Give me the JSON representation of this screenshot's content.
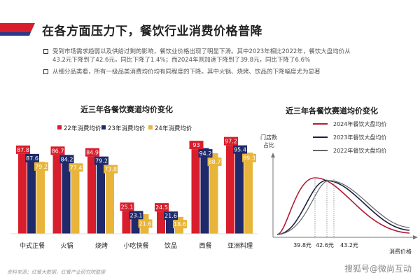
{
  "header": {
    "title": "在各方面压力下，餐饮行业消费价格普降"
  },
  "bullets": [
    "受到市场需求趋弱以及供给过剩的影响，餐饮业价格出现了明显下滑。其中2023年相比2022年，餐饮大盘均价从43.2元下降到了42.6元，同比下降了1.4%；而2024年则加速下降到了39.8元，同比下降了6.6%",
    "从细分品类看，所有一级品类消费均价均有同程度的下降。其中火锅、烧烤、饮品的下降幅度尤为显著"
  ],
  "source": "资料来源：红餐大数据，红餐产业研究院整理",
  "watermark": "搜狐号@微尚互动",
  "colors": {
    "red": "#d81e2c",
    "navy": "#1f2a6b",
    "gold": "#e8b53a",
    "brand_red": "#d81e2c",
    "brand_navy": "#2a3a8a"
  },
  "chart_data": [
    {
      "type": "bar",
      "title": "近三年各餐饮赛道均价变化",
      "categories": [
        "中式正餐",
        "火锅",
        "烧烤",
        "小吃快餐",
        "饮品",
        "西餐",
        "亚洲料理"
      ],
      "series": [
        {
          "name": "22年消费均价",
          "color": "#d81e2c",
          "values": [
            87.8,
            86.7,
            84.9,
            25.1,
            24.5,
            93,
            97.2
          ]
        },
        {
          "name": "23年消费均价",
          "color": "#1f2a6b",
          "values": [
            87.6,
            84.2,
            79.2,
            23.1,
            21.6,
            94.2,
            95.4
          ]
        },
        {
          "name": "24年消费均价",
          "color": "#e8b53a",
          "values": [
            79.2,
            77.4,
            73.8,
            21.6,
            18.6,
            88.7,
            89.3
          ]
        }
      ],
      "legend": "top"
    },
    {
      "type": "line",
      "title": "近三年各餐饮赛道均价变化",
      "ylabel": "门店数占比",
      "xlabel": "消费价格",
      "series": [
        {
          "name": "2024年餐饮大盘均价",
          "color": "#b01c35",
          "mean": 39.8
        },
        {
          "name": "2023年餐饮大盘均价",
          "color": "#1c2040",
          "mean": 42.6
        },
        {
          "name": "2022年餐饮大盘均价",
          "color": "#666666",
          "mean": 43.2
        }
      ],
      "x_tick_labels": [
        "39.8元",
        "42.6元",
        "43.2元"
      ],
      "legend": "top-right"
    }
  ]
}
